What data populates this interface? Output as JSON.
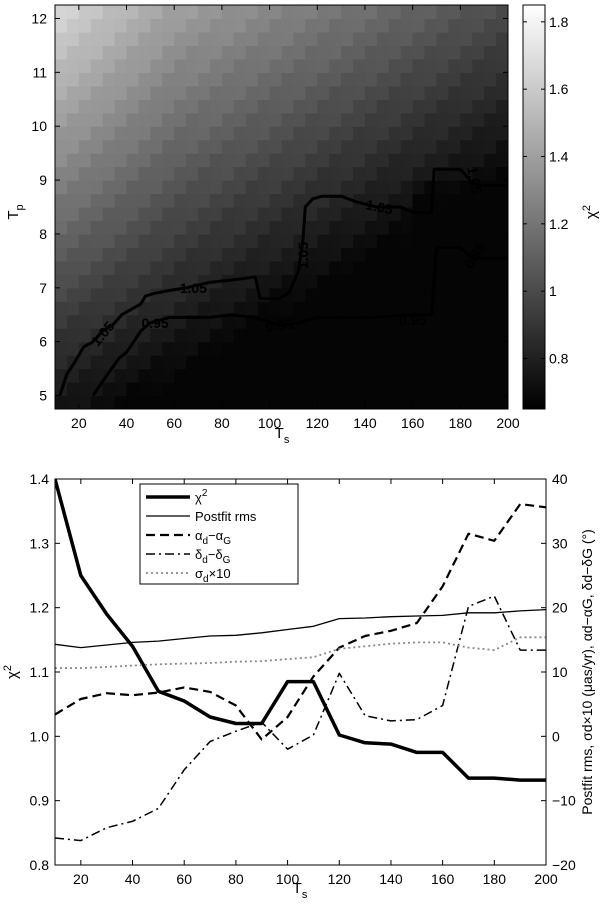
{
  "chart_data": [
    {
      "type": "heatmap",
      "xlabel": "T",
      "xlabel_sub": "s",
      "ylabel": "T",
      "ylabel_sub": "p",
      "colorbar_label": "χ",
      "colorbar_label_sup": "2",
      "xlim": [
        10,
        200
      ],
      "ylim": [
        4.75,
        12.25
      ],
      "x_ticks": [
        "20",
        "40",
        "60",
        "80",
        "100",
        "120",
        "140",
        "160",
        "180",
        "200"
      ],
      "y_ticks": [
        "5",
        "6",
        "7",
        "8",
        "9",
        "10",
        "11",
        "12"
      ],
      "colorbar_range": [
        0.65,
        1.85
      ],
      "colorbar_ticks": [
        "0.8",
        "1",
        "1.2",
        "1.4",
        "1.6",
        "1.8"
      ],
      "colormap": "gray",
      "grid": false,
      "contours": [
        {
          "level": "1.05",
          "points": [
            [
              12,
              5.0
            ],
            [
              15,
              5.4
            ],
            [
              18,
              5.6
            ],
            [
              22,
              5.9
            ],
            [
              26,
              6.0
            ],
            [
              30,
              6.2
            ],
            [
              34,
              6.3
            ],
            [
              38,
              6.5
            ],
            [
              42,
              6.6
            ],
            [
              46,
              6.7
            ],
            [
              48,
              6.85
            ],
            [
              52,
              6.9
            ],
            [
              58,
              6.95
            ],
            [
              65,
              7.0
            ],
            [
              75,
              7.1
            ],
            [
              85,
              7.15
            ],
            [
              94,
              7.2
            ],
            [
              96,
              6.8
            ],
            [
              104,
              6.8
            ],
            [
              108,
              6.9
            ],
            [
              110,
              7.1
            ],
            [
              112,
              7.3
            ],
            [
              114,
              7.9
            ],
            [
              115,
              8.5
            ],
            [
              118,
              8.65
            ],
            [
              122,
              8.7
            ],
            [
              130,
              8.7
            ],
            [
              136,
              8.6
            ],
            [
              145,
              8.5
            ],
            [
              155,
              8.5
            ],
            [
              160,
              8.4
            ],
            [
              168,
              8.4
            ],
            [
              169,
              9.2
            ],
            [
              180,
              9.2
            ],
            [
              184,
              9.0
            ],
            [
              187,
              8.9
            ],
            [
              200,
              8.9
            ]
          ],
          "labels": [
            {
              "text": "1.05",
              "x": 30,
              "y": 6.15,
              "angle": -50
            },
            {
              "text": "1.05",
              "x": 68,
              "y": 7.0,
              "angle": 0
            },
            {
              "text": "1.05",
              "x": 114,
              "y": 7.6,
              "angle": -90
            },
            {
              "text": "1.05",
              "x": 146,
              "y": 8.5,
              "angle": 12
            },
            {
              "text": "1.05",
              "x": 186,
              "y": 9.0,
              "angle": 80
            }
          ]
        },
        {
          "level": "0.95",
          "points": [
            [
              26,
              5.0
            ],
            [
              29,
              5.2
            ],
            [
              33,
              5.45
            ],
            [
              37,
              5.7
            ],
            [
              40,
              5.8
            ],
            [
              43,
              6.0
            ],
            [
              46,
              6.2
            ],
            [
              50,
              6.35
            ],
            [
              58,
              6.45
            ],
            [
              66,
              6.45
            ],
            [
              75,
              6.45
            ],
            [
              84,
              6.5
            ],
            [
              93,
              6.45
            ],
            [
              98,
              6.4
            ],
            [
              104,
              6.3
            ],
            [
              112,
              6.35
            ],
            [
              120,
              6.45
            ],
            [
              132,
              6.45
            ],
            [
              145,
              6.45
            ],
            [
              158,
              6.5
            ],
            [
              168,
              6.5
            ],
            [
              170,
              7.75
            ],
            [
              180,
              7.75
            ],
            [
              185,
              7.55
            ],
            [
              200,
              7.55
            ]
          ],
          "labels": [
            {
              "text": "0.95",
              "x": 52,
              "y": 6.35,
              "angle": 0
            },
            {
              "text": "0.95",
              "x": 104,
              "y": 6.3,
              "angle": -8
            },
            {
              "text": "0.95",
              "x": 160,
              "y": 6.4,
              "angle": 0
            },
            {
              "text": "0.95",
              "x": 186,
              "y": 7.6,
              "angle": -60
            }
          ]
        }
      ]
    },
    {
      "type": "line",
      "xlabel": "T",
      "xlabel_sub": "s",
      "ylabel_left": "χ",
      "ylabel_left_sup": "2",
      "ylabel_right": "Postfit rms, σd×10 (μas/yr), αd−αG, δd−δG (°)",
      "xlim": [
        10,
        200
      ],
      "ylim_left": [
        0.8,
        1.4
      ],
      "ylim_right": [
        -20,
        40
      ],
      "x_ticks": [
        "20",
        "40",
        "60",
        "80",
        "100",
        "120",
        "140",
        "160",
        "180",
        "200"
      ],
      "y_ticks_left": [
        "0.8",
        "0.9",
        "1.0",
        "1.1",
        "1.2",
        "1.3",
        "1.4"
      ],
      "y_ticks_right": [
        "−20",
        "−10",
        "0",
        "10",
        "20",
        "30",
        "40"
      ],
      "legend_position": "top-left",
      "grid": false,
      "x": [
        10,
        20,
        30,
        40,
        50,
        60,
        70,
        80,
        90,
        100,
        110,
        120,
        130,
        140,
        150,
        160,
        170,
        180,
        190,
        200
      ],
      "series": [
        {
          "name": "χ²",
          "axis": "left",
          "style": "thick",
          "x": [
            10,
            20,
            30,
            40,
            50,
            60,
            70,
            80,
            85,
            90,
            100,
            110,
            120,
            130,
            140,
            150,
            160,
            170,
            180,
            190,
            200
          ],
          "values": [
            1.4,
            1.25,
            1.19,
            1.14,
            1.07,
            1.055,
            1.03,
            1.02,
            1.02,
            1.02,
            1.085,
            1.085,
            1.002,
            0.99,
            0.988,
            0.975,
            0.975,
            0.935,
            0.935,
            0.932,
            0.932
          ]
        },
        {
          "name": "Postfit rms",
          "axis": "right",
          "style": "thin",
          "values": [
            14.3,
            13.8,
            14.2,
            14.6,
            14.8,
            15.2,
            15.6,
            15.7,
            16.1,
            16.6,
            17.1,
            18.3,
            18.4,
            18.6,
            18.7,
            18.8,
            19.2,
            19.2,
            19.5,
            19.7
          ]
        },
        {
          "name": "αd−αG",
          "axis": "right",
          "style": "dashed",
          "values": [
            3.4,
            5.8,
            6.7,
            6.4,
            6.8,
            7.6,
            6.9,
            4.8,
            -0.5,
            3.0,
            9.3,
            13.8,
            15.6,
            16.4,
            17.6,
            23.3,
            31.5,
            30.4,
            36.1,
            35.6
          ]
        },
        {
          "name": "δd−δG",
          "axis": "right",
          "style": "dashdot",
          "values": [
            -15.8,
            -16.2,
            -14.2,
            -13.2,
            -11.2,
            -5.2,
            -0.8,
            0.8,
            2.2,
            -2.0,
            0.2,
            9.8,
            3.2,
            2.4,
            2.6,
            4.8,
            20.2,
            21.8,
            13.4,
            13.4
          ]
        },
        {
          "name": "σd×10",
          "axis": "right",
          "style": "dotted",
          "values": [
            10.6,
            10.6,
            10.8,
            11.0,
            11.2,
            11.3,
            11.4,
            11.6,
            11.7,
            12.0,
            12.3,
            13.6,
            14.0,
            14.4,
            14.6,
            14.6,
            13.8,
            13.4,
            15.4,
            15.4
          ]
        }
      ],
      "legend": [
        {
          "label": "χ",
          "sup": "2",
          "style": "thick"
        },
        {
          "label": "Postfit rms",
          "style": "thin"
        },
        {
          "label": "α",
          "sub1": "d",
          "mid": "−α",
          "sub2": "G",
          "style": "dashed"
        },
        {
          "label": "δ",
          "sub1": "d",
          "mid": "−δ",
          "sub2": "G",
          "style": "dashdot"
        },
        {
          "label": "σ",
          "sub1": "d",
          "mid": "×10",
          "style": "dotted"
        }
      ]
    }
  ]
}
